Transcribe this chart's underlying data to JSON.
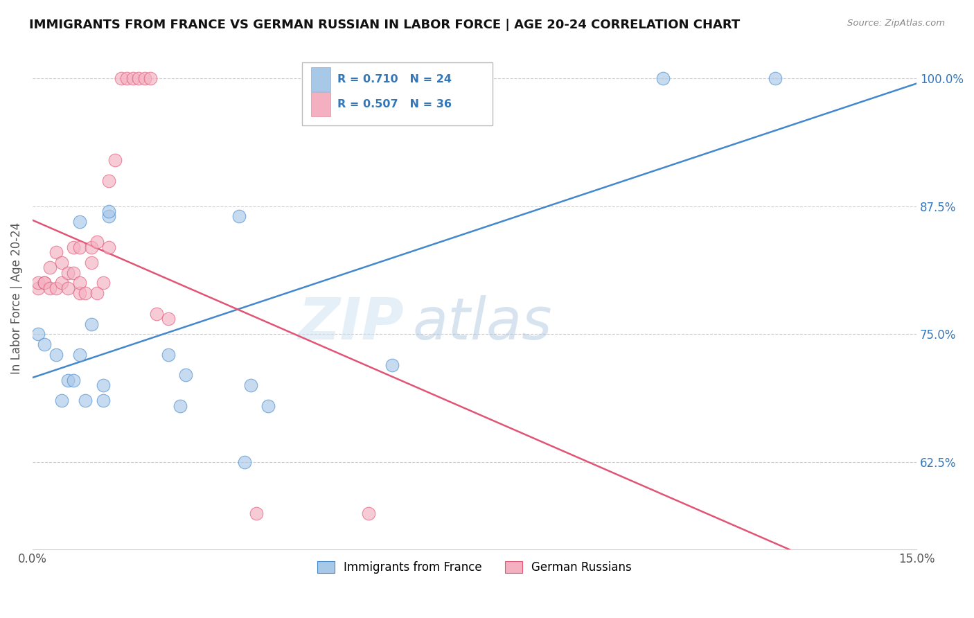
{
  "title": "IMMIGRANTS FROM FRANCE VS GERMAN RUSSIAN IN LABOR FORCE | AGE 20-24 CORRELATION CHART",
  "source": "Source: ZipAtlas.com",
  "ylabel": "In Labor Force | Age 20-24",
  "xlim": [
    0.0,
    0.15
  ],
  "ylim": [
    0.54,
    1.03
  ],
  "yticks": [
    0.625,
    0.75,
    0.875,
    1.0
  ],
  "ytick_labels": [
    "62.5%",
    "75.0%",
    "87.5%",
    "100.0%"
  ],
  "xticks": [
    0.0,
    0.03,
    0.06,
    0.09,
    0.12,
    0.15
  ],
  "xtick_labels": [
    "0.0%",
    "",
    "",
    "",
    "",
    "15.0%"
  ],
  "blue_color": "#a8c8e8",
  "pink_color": "#f4b0c0",
  "blue_line_color": "#4488cc",
  "pink_line_color": "#e05575",
  "legend_text_color": "#3377bb",
  "watermark_zip": "ZIP",
  "watermark_atlas": "atlas",
  "france_R": 0.71,
  "france_N": 24,
  "german_R": 0.507,
  "german_N": 36,
  "france_x": [
    0.001,
    0.002,
    0.004,
    0.005,
    0.006,
    0.007,
    0.008,
    0.008,
    0.009,
    0.01,
    0.012,
    0.012,
    0.013,
    0.013,
    0.023,
    0.025,
    0.026,
    0.035,
    0.036,
    0.037,
    0.04,
    0.061,
    0.107,
    0.126
  ],
  "france_y": [
    0.75,
    0.74,
    0.73,
    0.685,
    0.705,
    0.705,
    0.73,
    0.86,
    0.685,
    0.76,
    0.685,
    0.7,
    0.865,
    0.87,
    0.73,
    0.68,
    0.71,
    0.865,
    0.625,
    0.7,
    0.68,
    0.72,
    1.0,
    1.0
  ],
  "german_x": [
    0.001,
    0.001,
    0.002,
    0.002,
    0.003,
    0.003,
    0.004,
    0.004,
    0.005,
    0.005,
    0.006,
    0.006,
    0.007,
    0.007,
    0.008,
    0.008,
    0.008,
    0.009,
    0.01,
    0.01,
    0.011,
    0.011,
    0.012,
    0.013,
    0.013,
    0.014,
    0.015,
    0.016,
    0.017,
    0.018,
    0.019,
    0.02,
    0.021,
    0.023,
    0.038,
    0.057
  ],
  "german_y": [
    0.795,
    0.8,
    0.8,
    0.8,
    0.815,
    0.795,
    0.83,
    0.795,
    0.82,
    0.8,
    0.795,
    0.81,
    0.81,
    0.835,
    0.79,
    0.835,
    0.8,
    0.79,
    0.835,
    0.82,
    0.79,
    0.84,
    0.8,
    0.835,
    0.9,
    0.92,
    1.0,
    1.0,
    1.0,
    1.0,
    1.0,
    1.0,
    0.77,
    0.765,
    0.575,
    0.575
  ],
  "background_color": "#ffffff",
  "grid_color": "#cccccc"
}
